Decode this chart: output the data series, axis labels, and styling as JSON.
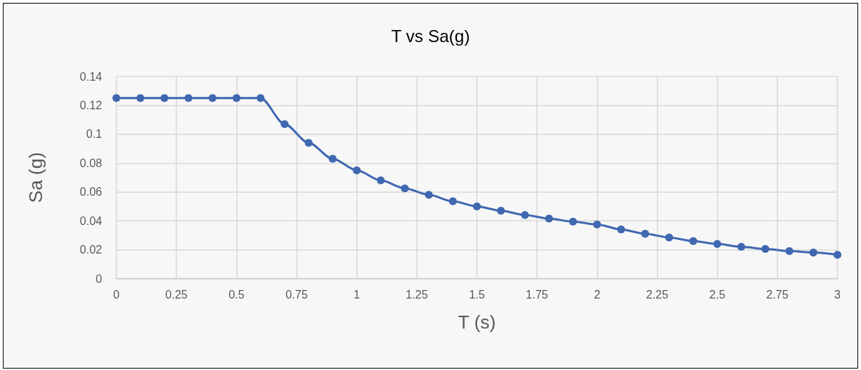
{
  "chart_data": {
    "type": "line",
    "title": "T vs Sa(g)",
    "xlabel": "T (s)",
    "ylabel": "Sa (g)",
    "x": [
      0,
      0.1,
      0.2,
      0.3,
      0.4,
      0.5,
      0.6,
      0.7,
      0.8,
      0.9,
      1,
      1.1,
      1.2,
      1.3,
      1.4,
      1.5,
      1.6,
      1.7,
      1.8,
      1.9,
      2,
      2.1,
      2.2,
      2.3,
      2.4,
      2.5,
      2.6,
      2.7,
      2.8,
      2.9,
      3
    ],
    "series": [
      {
        "color": "#4068b0",
        "values": [
          0.125,
          0.125,
          0.125,
          0.125,
          0.125,
          0.125,
          0.125,
          0.107,
          0.094,
          0.083,
          0.075,
          0.068,
          0.0625,
          0.058,
          0.0535,
          0.05,
          0.047,
          0.044,
          0.0415,
          0.0395,
          0.0375,
          0.034,
          0.031,
          0.0285,
          0.026,
          0.024,
          0.022,
          0.0205,
          0.019,
          0.018,
          0.0165
        ]
      }
    ],
    "xlim": [
      0,
      3
    ],
    "xticks": [
      0,
      0.25,
      0.5,
      0.75,
      1,
      1.25,
      1.5,
      1.75,
      2,
      2.25,
      2.5,
      2.75,
      3
    ],
    "ylim": [
      0,
      0.14
    ],
    "yticks": [
      0,
      0.02,
      0.04,
      0.06,
      0.08,
      0.1,
      0.12,
      0.14
    ],
    "grid": true,
    "marker": "circle",
    "line_style": "solid"
  }
}
